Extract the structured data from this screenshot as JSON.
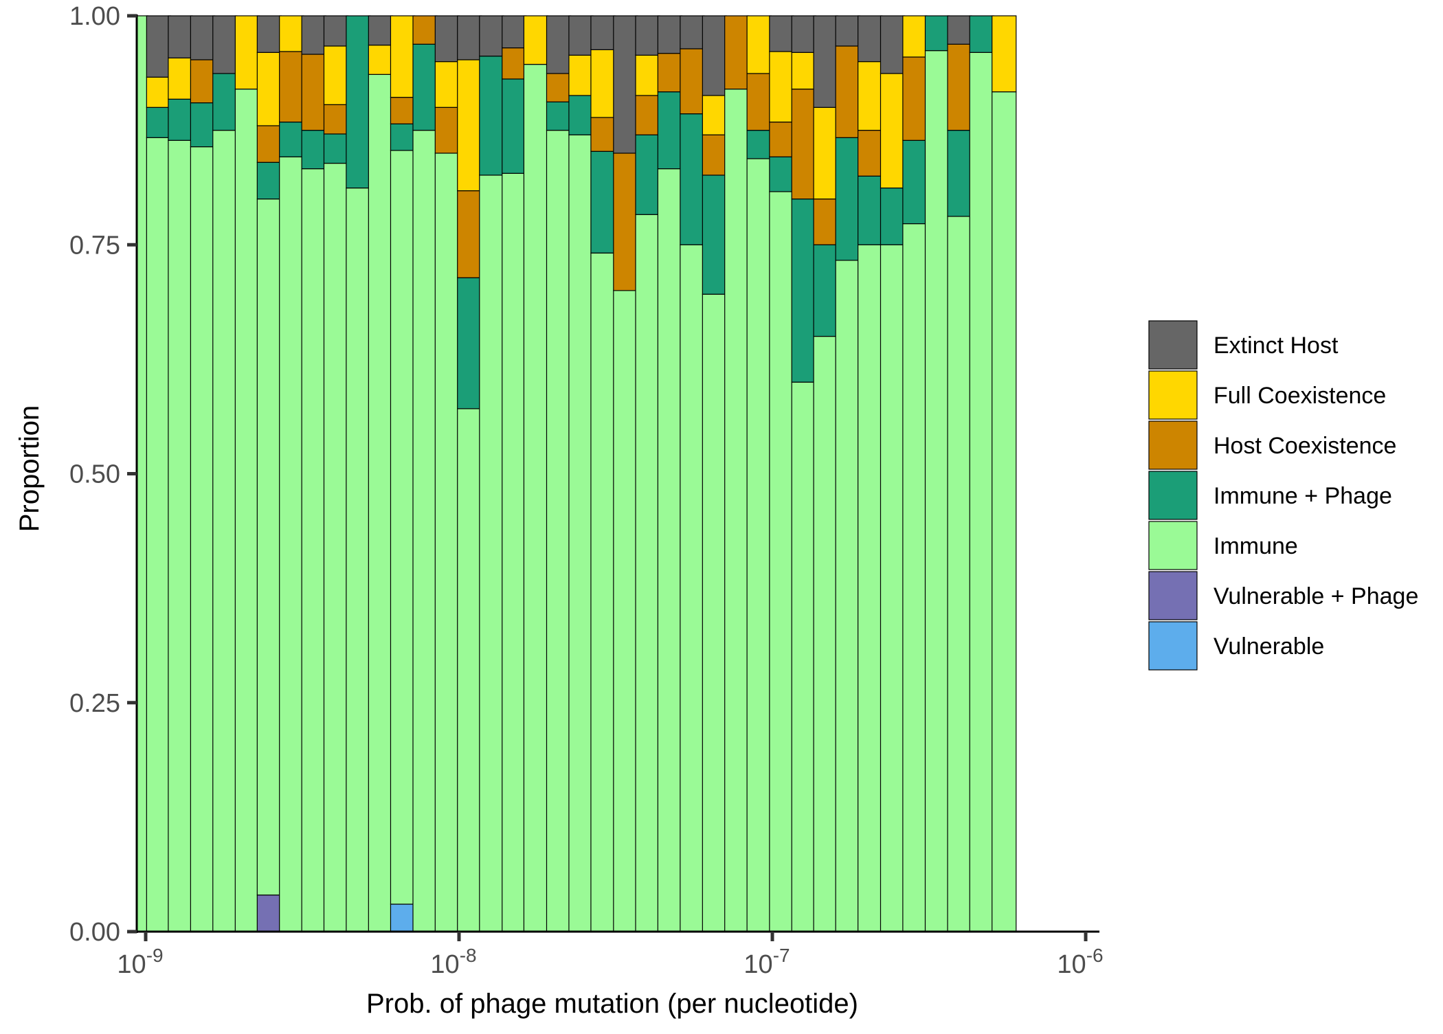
{
  "chart_data": {
    "type": "bar",
    "stacked": true,
    "xlabel": "Prob. of phage mutation (per nucleotide)",
    "ylabel": "Proportion",
    "x_scale": "log10",
    "xlim": [
      1e-09,
      1e-06
    ],
    "ylim": [
      0,
      1
    ],
    "y_ticks": [
      "0.00",
      "0.25",
      "0.50",
      "0.75",
      "1.00"
    ],
    "x_ticks": [
      {
        "base": "10",
        "exp": "-9"
      },
      {
        "base": "10",
        "exp": "-8"
      },
      {
        "base": "10",
        "exp": "-7"
      },
      {
        "base": "10",
        "exp": "-6"
      }
    ],
    "grid": false,
    "legend_position": "right",
    "stack_order_bottom_to_top": [
      "Vulnerable",
      "Vulnerable + Phage",
      "Immune",
      "Immune + Phage",
      "Host Coexistence",
      "Full Coexistence",
      "Extinct Host"
    ],
    "legend": [
      {
        "name": "Extinct Host",
        "color": "#666666"
      },
      {
        "name": "Full Coexistence",
        "color": "#FFD700"
      },
      {
        "name": "Host Coexistence",
        "color": "#CD8500"
      },
      {
        "name": "Immune + Phage",
        "color": "#1B9E77"
      },
      {
        "name": "Immune",
        "color": "#9AFA96"
      },
      {
        "name": "Vulnerable + Phage",
        "color": "#7570B3"
      },
      {
        "name": "Vulnerable",
        "color": "#5DADEC"
      }
    ],
    "bars": [
      {
        "x": 9.31e-10,
        "v": {
          "Immune": 1.0
        }
      },
      {
        "x": 1.1e-09,
        "v": {
          "Immune": 0.867,
          "Immune + Phage": 0.033,
          "Full Coexistence": 0.033,
          "Extinct Host": 0.067
        }
      },
      {
        "x": 1.29e-09,
        "v": {
          "Immune": 0.864,
          "Immune + Phage": 0.045,
          "Full Coexistence": 0.045,
          "Extinct Host": 0.046
        }
      },
      {
        "x": 1.52e-09,
        "v": {
          "Immune": 0.857,
          "Immune + Phage": 0.048,
          "Host Coexistence": 0.047,
          "Extinct Host": 0.048
        }
      },
      {
        "x": 1.79e-09,
        "v": {
          "Immune": 0.875,
          "Immune + Phage": 0.062,
          "Extinct Host": 0.063
        }
      },
      {
        "x": 2.11e-09,
        "v": {
          "Immune": 0.92,
          "Full Coexistence": 0.08
        }
      },
      {
        "x": 2.48e-09,
        "v": {
          "Vulnerable + Phage": 0.04,
          "Immune": 0.76,
          "Immune + Phage": 0.04,
          "Host Coexistence": 0.04,
          "Full Coexistence": 0.08,
          "Extinct Host": 0.04
        }
      },
      {
        "x": 2.92e-09,
        "v": {
          "Immune": 0.846,
          "Immune + Phage": 0.038,
          "Host Coexistence": 0.077,
          "Full Coexistence": 0.039
        }
      },
      {
        "x": 3.44e-09,
        "v": {
          "Immune": 0.833,
          "Immune + Phage": 0.042,
          "Host Coexistence": 0.083,
          "Extinct Host": 0.042
        }
      },
      {
        "x": 4.05e-09,
        "v": {
          "Immune": 0.839,
          "Immune + Phage": 0.032,
          "Host Coexistence": 0.032,
          "Full Coexistence": 0.064,
          "Extinct Host": 0.033
        }
      },
      {
        "x": 4.77e-09,
        "v": {
          "Immune": 0.812,
          "Immune + Phage": 0.188
        }
      },
      {
        "x": 5.62e-09,
        "v": {
          "Immune": 0.936,
          "Full Coexistence": 0.032,
          "Extinct Host": 0.032
        }
      },
      {
        "x": 6.61e-09,
        "v": {
          "Vulnerable": 0.03,
          "Immune": 0.823,
          "Immune + Phage": 0.029,
          "Host Coexistence": 0.029,
          "Full Coexistence": 0.089
        }
      },
      {
        "x": 7.79e-09,
        "v": {
          "Immune": 0.875,
          "Immune + Phage": 0.094,
          "Host Coexistence": 0.031
        }
      },
      {
        "x": 9.17e-09,
        "v": {
          "Immune": 0.85,
          "Host Coexistence": 0.05,
          "Full Coexistence": 0.05,
          "Extinct Host": 0.05
        }
      },
      {
        "x": 1.08e-08,
        "v": {
          "Immune": 0.571,
          "Immune + Phage": 0.143,
          "Host Coexistence": 0.095,
          "Full Coexistence": 0.143,
          "Extinct Host": 0.048
        }
      },
      {
        "x": 1.27e-08,
        "v": {
          "Immune": 0.826,
          "Immune + Phage": 0.13,
          "Extinct Host": 0.044
        }
      },
      {
        "x": 1.5e-08,
        "v": {
          "Immune": 0.828,
          "Immune + Phage": 0.103,
          "Host Coexistence": 0.034,
          "Extinct Host": 0.035
        }
      },
      {
        "x": 1.76e-08,
        "v": {
          "Immune": 0.947,
          "Full Coexistence": 0.053
        }
      },
      {
        "x": 2.08e-08,
        "v": {
          "Immune": 0.875,
          "Immune + Phage": 0.031,
          "Host Coexistence": 0.031,
          "Extinct Host": 0.063
        }
      },
      {
        "x": 2.45e-08,
        "v": {
          "Immune": 0.87,
          "Immune + Phage": 0.043,
          "Full Coexistence": 0.044,
          "Extinct Host": 0.043
        }
      },
      {
        "x": 2.88e-08,
        "v": {
          "Immune": 0.741,
          "Immune + Phage": 0.111,
          "Host Coexistence": 0.037,
          "Full Coexistence": 0.074,
          "Extinct Host": 0.037
        }
      },
      {
        "x": 3.4e-08,
        "v": {
          "Immune": 0.7,
          "Host Coexistence": 0.15,
          "Extinct Host": 0.15
        }
      },
      {
        "x": 4e-08,
        "v": {
          "Immune": 0.783,
          "Immune + Phage": 0.087,
          "Host Coexistence": 0.043,
          "Full Coexistence": 0.044,
          "Extinct Host": 0.043
        }
      },
      {
        "x": 4.71e-08,
        "v": {
          "Immune": 0.833,
          "Immune + Phage": 0.084,
          "Host Coexistence": 0.042,
          "Extinct Host": 0.041
        }
      },
      {
        "x": 5.55e-08,
        "v": {
          "Immune": 0.75,
          "Immune + Phage": 0.143,
          "Host Coexistence": 0.071,
          "Extinct Host": 0.036
        }
      },
      {
        "x": 6.54e-08,
        "v": {
          "Immune": 0.696,
          "Immune + Phage": 0.13,
          "Host Coexistence": 0.044,
          "Full Coexistence": 0.043,
          "Extinct Host": 0.087
        }
      },
      {
        "x": 7.7e-08,
        "v": {
          "Immune": 0.92,
          "Host Coexistence": 0.08
        }
      },
      {
        "x": 9.07e-08,
        "v": {
          "Immune": 0.844,
          "Immune + Phage": 0.031,
          "Host Coexistence": 0.062,
          "Full Coexistence": 0.063
        }
      },
      {
        "x": 1.07e-07,
        "v": {
          "Immune": 0.808,
          "Immune + Phage": 0.038,
          "Host Coexistence": 0.038,
          "Full Coexistence": 0.077,
          "Extinct Host": 0.039
        }
      },
      {
        "x": 1.26e-07,
        "v": {
          "Immune": 0.6,
          "Immune + Phage": 0.2,
          "Host Coexistence": 0.12,
          "Full Coexistence": 0.04,
          "Extinct Host": 0.04
        }
      },
      {
        "x": 1.48e-07,
        "v": {
          "Immune": 0.65,
          "Immune + Phage": 0.1,
          "Host Coexistence": 0.05,
          "Full Coexistence": 0.1,
          "Extinct Host": 0.1
        }
      },
      {
        "x": 1.74e-07,
        "v": {
          "Immune": 0.733,
          "Immune + Phage": 0.134,
          "Host Coexistence": 0.1,
          "Extinct Host": 0.033
        }
      },
      {
        "x": 2.05e-07,
        "v": {
          "Immune": 0.75,
          "Immune + Phage": 0.075,
          "Host Coexistence": 0.05,
          "Full Coexistence": 0.075,
          "Extinct Host": 0.05
        }
      },
      {
        "x": 2.42e-07,
        "v": {
          "Immune": 0.75,
          "Immune + Phage": 0.062,
          "Full Coexistence": 0.125,
          "Extinct Host": 0.063
        }
      },
      {
        "x": 2.85e-07,
        "v": {
          "Immune": 0.773,
          "Immune + Phage": 0.091,
          "Host Coexistence": 0.091,
          "Full Coexistence": 0.045
        }
      },
      {
        "x": 3.36e-07,
        "v": {
          "Immune": 0.962,
          "Immune + Phage": 0.038
        }
      },
      {
        "x": 3.96e-07,
        "v": {
          "Immune": 0.781,
          "Immune + Phage": 0.094,
          "Host Coexistence": 0.094,
          "Extinct Host": 0.031
        }
      },
      {
        "x": 4.66e-07,
        "v": {
          "Immune": 0.96,
          "Immune + Phage": 0.04
        }
      },
      {
        "x": 5.49e-07,
        "v": {
          "Immune": 0.917,
          "Full Coexistence": 0.083
        }
      }
    ]
  }
}
